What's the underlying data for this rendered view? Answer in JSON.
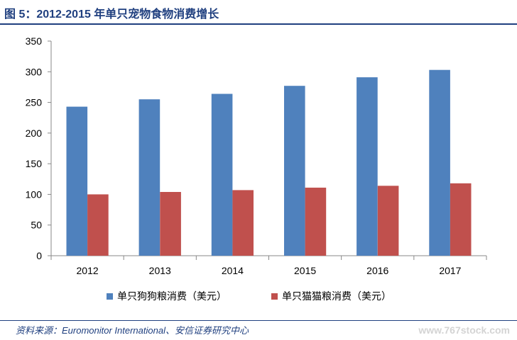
{
  "title": "图 5：2012-2015 年单只宠物食物消费增长",
  "source": "资料来源：Euromonitor International、安信证券研究中心",
  "watermark": "www.767stock.com",
  "colors": {
    "dog": "#4f81bd",
    "cat": "#c0504d",
    "title": "#1f3f7f"
  },
  "chart_data": {
    "type": "bar",
    "title": "2012-2015 年单只宠物食物消费增长",
    "categories": [
      "2012",
      "2013",
      "2014",
      "2015",
      "2016",
      "2017"
    ],
    "series": [
      {
        "name": "单只狗狗粮消费（美元）",
        "values": [
          243,
          255,
          264,
          277,
          291,
          303
        ]
      },
      {
        "name": "单只猫猫粮消费（美元）",
        "values": [
          100,
          104,
          107,
          111,
          114,
          118
        ]
      }
    ],
    "yticks": [
      "0",
      "50",
      "100",
      "150",
      "200",
      "250",
      "300",
      "350"
    ],
    "ylim": [
      0,
      350
    ],
    "grid": false,
    "legend_position": "bottom"
  }
}
